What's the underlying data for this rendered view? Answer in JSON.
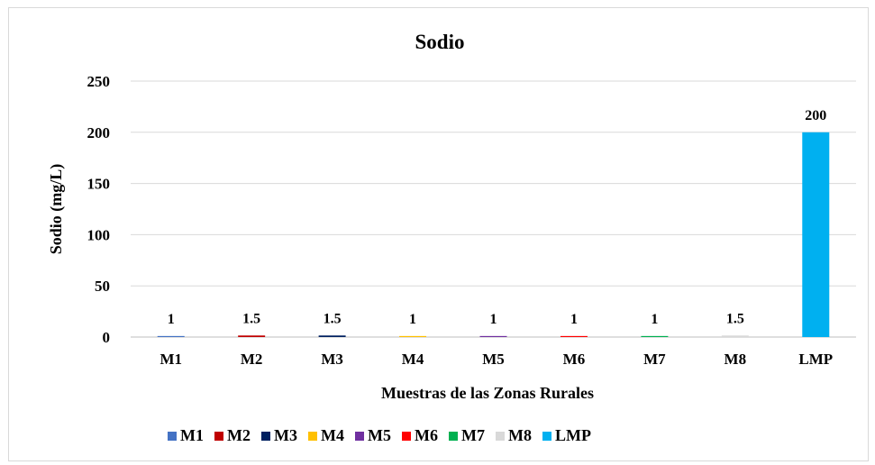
{
  "chart_data": {
    "type": "bar",
    "title": "Sodio",
    "xlabel": "Muestras de las Zonas Rurales",
    "ylabel": "Sodio (mg/L)",
    "ylim": [
      0,
      250
    ],
    "yticks": [
      0,
      50,
      100,
      150,
      200,
      250
    ],
    "grid": true,
    "legend": "bottom",
    "categories": [
      "M1",
      "M2",
      "M3",
      "M4",
      "M5",
      "M6",
      "M7",
      "M8",
      "LMP"
    ],
    "values": [
      1,
      1.5,
      1.5,
      1,
      1,
      1,
      1,
      1.5,
      200
    ],
    "data_labels": [
      "1",
      "1.5",
      "1.5",
      "1",
      "1",
      "1",
      "1",
      "1.5",
      "200"
    ],
    "colors": [
      "#4472c4",
      "#c00000",
      "#002060",
      "#ffc000",
      "#7030a0",
      "#ff0000",
      "#00b050",
      "#d9d9d9",
      "#00b0f0"
    ]
  }
}
